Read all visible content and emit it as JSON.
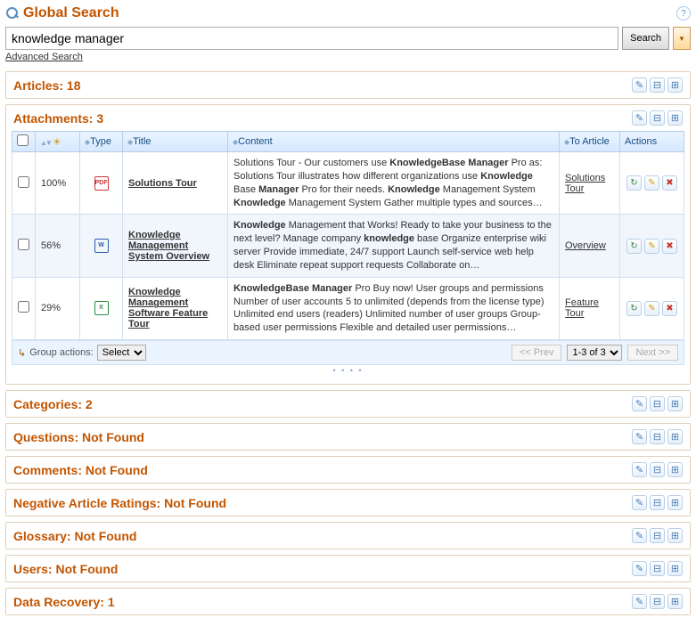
{
  "page": {
    "title": "Global Search",
    "help_tooltip": "?"
  },
  "search": {
    "value": "knowledge manager",
    "button": "Search",
    "advanced": "Advanced Search"
  },
  "sections": [
    {
      "title": "Articles: 18"
    }
  ],
  "attachments": {
    "title": "Attachments: 3",
    "columns": {
      "relevance": "",
      "type": "Type",
      "item_title": "Title",
      "content": "Content",
      "to_article": "To Article",
      "actions": "Actions"
    },
    "rows": [
      {
        "relevance": "100%",
        "file_type": "pdf",
        "title": "Solutions Tour",
        "content_html": "Solutions Tour - Our customers use <b>KnowledgeBase Manager</b> Pro as: Solutions Tour illustrates how different organizations use <b>Knowledge</b> Base <b>Manager</b> Pro for their needs. <b>Knowledge</b> Management System <b>Knowledge</b> Management System Gather multiple types and sources…",
        "to_article": "Solutions Tour"
      },
      {
        "relevance": "56%",
        "file_type": "doc",
        "title": "Knowledge Management System Overview",
        "content_html": "<b>Knowledge</b> Management that Works! Ready to take your business to the next level? Manage company <b>knowledge</b> base Organize enterprise wiki server Provide immediate, 24/7 support Launch self-service web help desk Eliminate repeat support requests Collaborate on…",
        "to_article": "Overview"
      },
      {
        "relevance": "29%",
        "file_type": "xls",
        "title": "Knowledge Management Software Feature Tour",
        "content_html": "<b>KnowledgeBase Manager</b> Pro Buy now! User groups and permissions Number of user accounts 5 to unlimited (depends from the license type) Unlimited end users (readers) Unlimited number of user groups Group-based user permissions Flexible and detailed user permissions…",
        "to_article": "Feature Tour"
      }
    ],
    "group_actions": {
      "label": "Group actions:",
      "placeholder": "Select"
    },
    "pager": {
      "prev": "<< Prev",
      "range": "1-3 of 3",
      "next": "Next >>"
    }
  },
  "other_sections": [
    {
      "title": "Categories: 2"
    },
    {
      "title": "Questions: Not Found"
    },
    {
      "title": "Comments: Not Found"
    },
    {
      "title": "Negative Article Ratings: Not Found"
    },
    {
      "title": "Glossary: Not Found"
    },
    {
      "title": "Users: Not Found"
    },
    {
      "title": "Data Recovery: 1"
    }
  ],
  "icons": {
    "file": {
      "pdf": {
        "label": "PDF",
        "bg": "#fff",
        "border": "#c33",
        "color": "#c33"
      },
      "doc": {
        "label": "W",
        "bg": "#fff",
        "border": "#2a5db0",
        "color": "#2a5db0"
      },
      "xls": {
        "label": "X",
        "bg": "#fff",
        "border": "#2e8b3d",
        "color": "#2e8b3d"
      }
    },
    "row_actions": {
      "refresh": {
        "glyph": "↻",
        "color": "#2e8b3d"
      },
      "edit": {
        "glyph": "✎",
        "color": "#d39e00"
      },
      "delete": {
        "glyph": "✖",
        "color": "#c0392b"
      }
    },
    "header_actions": {
      "edit": {
        "glyph": "✎"
      },
      "collapse": {
        "glyph": "⊟"
      },
      "expand": {
        "glyph": "⊞"
      }
    }
  }
}
